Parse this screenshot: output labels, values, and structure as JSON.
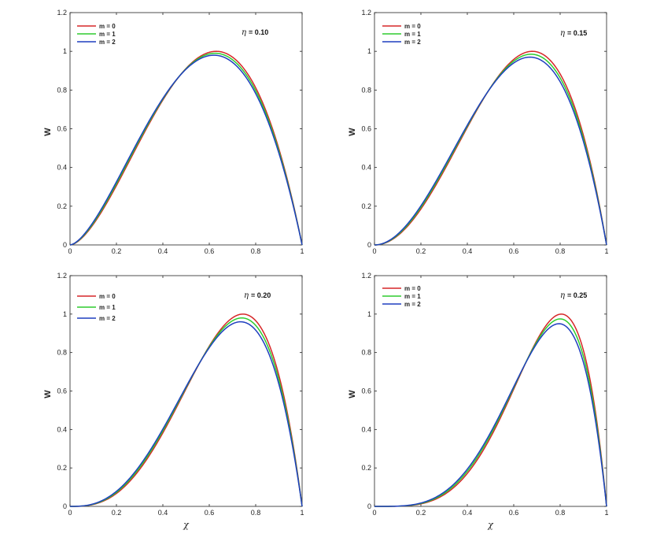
{
  "chart_data": [
    {
      "type": "line",
      "annotation": {
        "symbol": "η",
        "value": "= 0.10"
      },
      "xlabel": "",
      "ylabel": "W",
      "xlim": [
        0,
        1
      ],
      "ylim": [
        0,
        1.2
      ],
      "xticks": [
        "0",
        "0.2",
        "0.4",
        "0.6",
        "0.8",
        "1"
      ],
      "yticks": [
        "0",
        "0.2",
        "0.4",
        "0.6",
        "0.8",
        "1",
        "1.2"
      ],
      "legend_position": "top-left",
      "legend_spacing": "normal",
      "series": [
        {
          "name": "m = 0",
          "color": "#d62728",
          "peak_x": 0.63,
          "peak_y": 1.0
        },
        {
          "name": "m = 1",
          "color": "#2ecc2e",
          "peak_x": 0.625,
          "peak_y": 0.99
        },
        {
          "name": "m = 2",
          "color": "#1f3fbf",
          "peak_x": 0.62,
          "peak_y": 0.98
        }
      ]
    },
    {
      "type": "line",
      "annotation": {
        "symbol": "η",
        "value": "= 0.15"
      },
      "xlabel": "",
      "ylabel": "W",
      "xlim": [
        0,
        1
      ],
      "ylim": [
        0,
        1.2
      ],
      "xticks": [
        "0",
        "0.2",
        "0.4",
        "0.6",
        "0.8",
        "1"
      ],
      "yticks": [
        "0",
        "0.2",
        "0.4",
        "0.6",
        "0.8",
        "1",
        "1.2"
      ],
      "legend_position": "top-left",
      "legend_spacing": "normal",
      "series": [
        {
          "name": "m = 0",
          "color": "#d62728",
          "peak_x": 0.68,
          "peak_y": 1.0
        },
        {
          "name": "m = 1",
          "color": "#2ecc2e",
          "peak_x": 0.675,
          "peak_y": 0.985
        },
        {
          "name": "m = 2",
          "color": "#1f3fbf",
          "peak_x": 0.67,
          "peak_y": 0.97
        }
      ]
    },
    {
      "type": "line",
      "annotation": {
        "symbol": "η",
        "value": "= 0.20"
      },
      "xlabel": "χ",
      "ylabel": "W",
      "xlim": [
        0,
        1
      ],
      "ylim": [
        0,
        1.2
      ],
      "xticks": [
        "0",
        "0.2",
        "0.4",
        "0.6",
        "0.8",
        "1"
      ],
      "yticks": [
        "0",
        "0.2",
        "0.4",
        "0.6",
        "0.8",
        "1",
        "1.2"
      ],
      "legend_position": "top-left",
      "legend_spacing": "wide",
      "series": [
        {
          "name": "m = 0",
          "color": "#d62728",
          "peak_x": 0.745,
          "peak_y": 1.0
        },
        {
          "name": "m = 1",
          "color": "#2ecc2e",
          "peak_x": 0.74,
          "peak_y": 0.98
        },
        {
          "name": "m = 2",
          "color": "#1f3fbf",
          "peak_x": 0.735,
          "peak_y": 0.96
        }
      ]
    },
    {
      "type": "line",
      "annotation": {
        "symbol": "η",
        "value": "= 0.25"
      },
      "xlabel": "χ",
      "ylabel": "W",
      "xlim": [
        0,
        1
      ],
      "ylim": [
        0,
        1.2
      ],
      "xticks": [
        "0",
        "0.2",
        "0.4",
        "0.6",
        "0.8",
        "1"
      ],
      "yticks": [
        "0",
        "0.2",
        "0.4",
        "0.6",
        "0.8",
        "1",
        "1.2"
      ],
      "legend_position": "top-left",
      "legend_spacing": "normal",
      "series": [
        {
          "name": "m = 0",
          "color": "#d62728",
          "peak_x": 0.805,
          "peak_y": 1.0
        },
        {
          "name": "m = 1",
          "color": "#2ecc2e",
          "peak_x": 0.8,
          "peak_y": 0.975
        },
        {
          "name": "m = 2",
          "color": "#1f3fbf",
          "peak_x": 0.795,
          "peak_y": 0.95
        }
      ]
    }
  ]
}
